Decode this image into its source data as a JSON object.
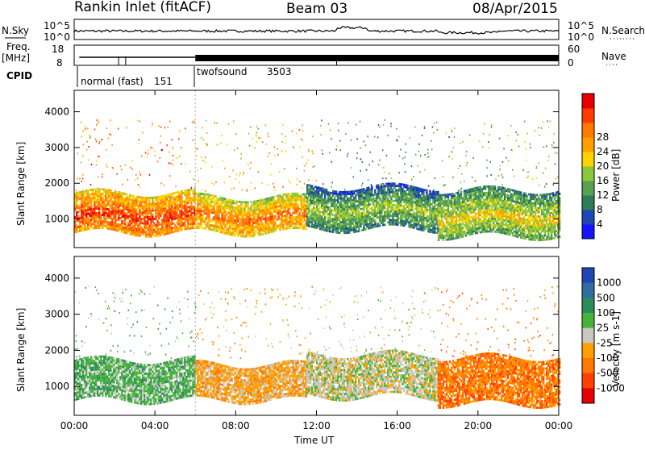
{
  "header": {
    "station": "Rankin Inlet (fitACF)",
    "beam": "Beam 03",
    "date": "08/Apr/2015"
  },
  "top_panels": {
    "nsky_label": "N.Sky",
    "nsky_ticks": [
      "10^5",
      "10^0"
    ],
    "nsearch_label": "N.Search",
    "nsearch_ticks": [
      "10^5",
      "10^0"
    ],
    "freq_label": "Freq.",
    "freq_unit": "[MHz]",
    "freq_ticks": [
      "18",
      "8"
    ],
    "nave_label": "Nave",
    "nave_ticks": [
      "60",
      "0"
    ],
    "cpid_label": "CPID",
    "cpid_segments": [
      {
        "name": "normal (fast)",
        "id": "151"
      },
      {
        "name": "twofsound",
        "id": "3503"
      }
    ]
  },
  "chart_data": [
    {
      "type": "heatmap",
      "title": "Power",
      "ylabel": "Slant Range [km]",
      "xlabel": "",
      "ylim": [
        200,
        4600
      ],
      "yticks": [
        1000,
        2000,
        3000,
        4000
      ],
      "xlim": [
        0,
        24
      ],
      "colorbar": {
        "label": "Power [dB]",
        "ticks": [
          "4",
          "8",
          "12",
          "16",
          "20",
          "24",
          "28"
        ],
        "colors": [
          "#1414ff",
          "#1e46b4",
          "#2e7d5a",
          "#5aa050",
          "#8cc83c",
          "#ffd200",
          "#ffa000",
          "#ff7800",
          "#ff3c00",
          "#e60000"
        ]
      },
      "bands": [
        {
          "t_start": 0.0,
          "t_end": 6.0,
          "range_low": 600,
          "range_high": 1700,
          "value_db": 26
        },
        {
          "t_start": 6.0,
          "t_end": 11.5,
          "range_low": 600,
          "range_high": 1600,
          "value_db": 24
        },
        {
          "t_start": 11.5,
          "t_end": 18.0,
          "range_low": 700,
          "range_high": 1900,
          "value_db": 16
        },
        {
          "t_start": 18.0,
          "t_end": 24.0,
          "range_low": 500,
          "range_high": 1800,
          "value_db": 18
        }
      ]
    },
    {
      "type": "heatmap",
      "title": "Velocity",
      "ylabel": "Slant Range [km]",
      "xlabel": "Time UT",
      "ylim": [
        200,
        4600
      ],
      "yticks": [
        1000,
        2000,
        3000,
        4000
      ],
      "xlim": [
        0,
        24
      ],
      "xticks": [
        "00:00",
        "04:00",
        "08:00",
        "12:00",
        "16:00",
        "20:00",
        "00:00"
      ],
      "colorbar": {
        "label": "Velocity [m s-1]",
        "ticks": [
          "1000",
          "500",
          "100",
          "25",
          "-25",
          "-100",
          "-500",
          "-1000"
        ],
        "colors": [
          "#1e46b4",
          "#2e6ea0",
          "#2e8c5a",
          "#46b43c",
          "#c8c8c0",
          "#ffa000",
          "#ff7800",
          "#ff4000",
          "#e60000"
        ]
      },
      "bands": [
        {
          "t_start": 0.0,
          "t_end": 6.0,
          "range_low": 600,
          "range_high": 1700,
          "value_ms": 150
        },
        {
          "t_start": 6.0,
          "t_end": 11.5,
          "range_low": 600,
          "range_high": 1600,
          "value_ms": -120
        },
        {
          "t_start": 11.5,
          "t_end": 18.0,
          "range_low": 700,
          "range_high": 1900,
          "value_ms": -40
        },
        {
          "t_start": 18.0,
          "t_end": 24.0,
          "range_low": 500,
          "range_high": 1800,
          "value_ms": -200
        }
      ]
    }
  ]
}
